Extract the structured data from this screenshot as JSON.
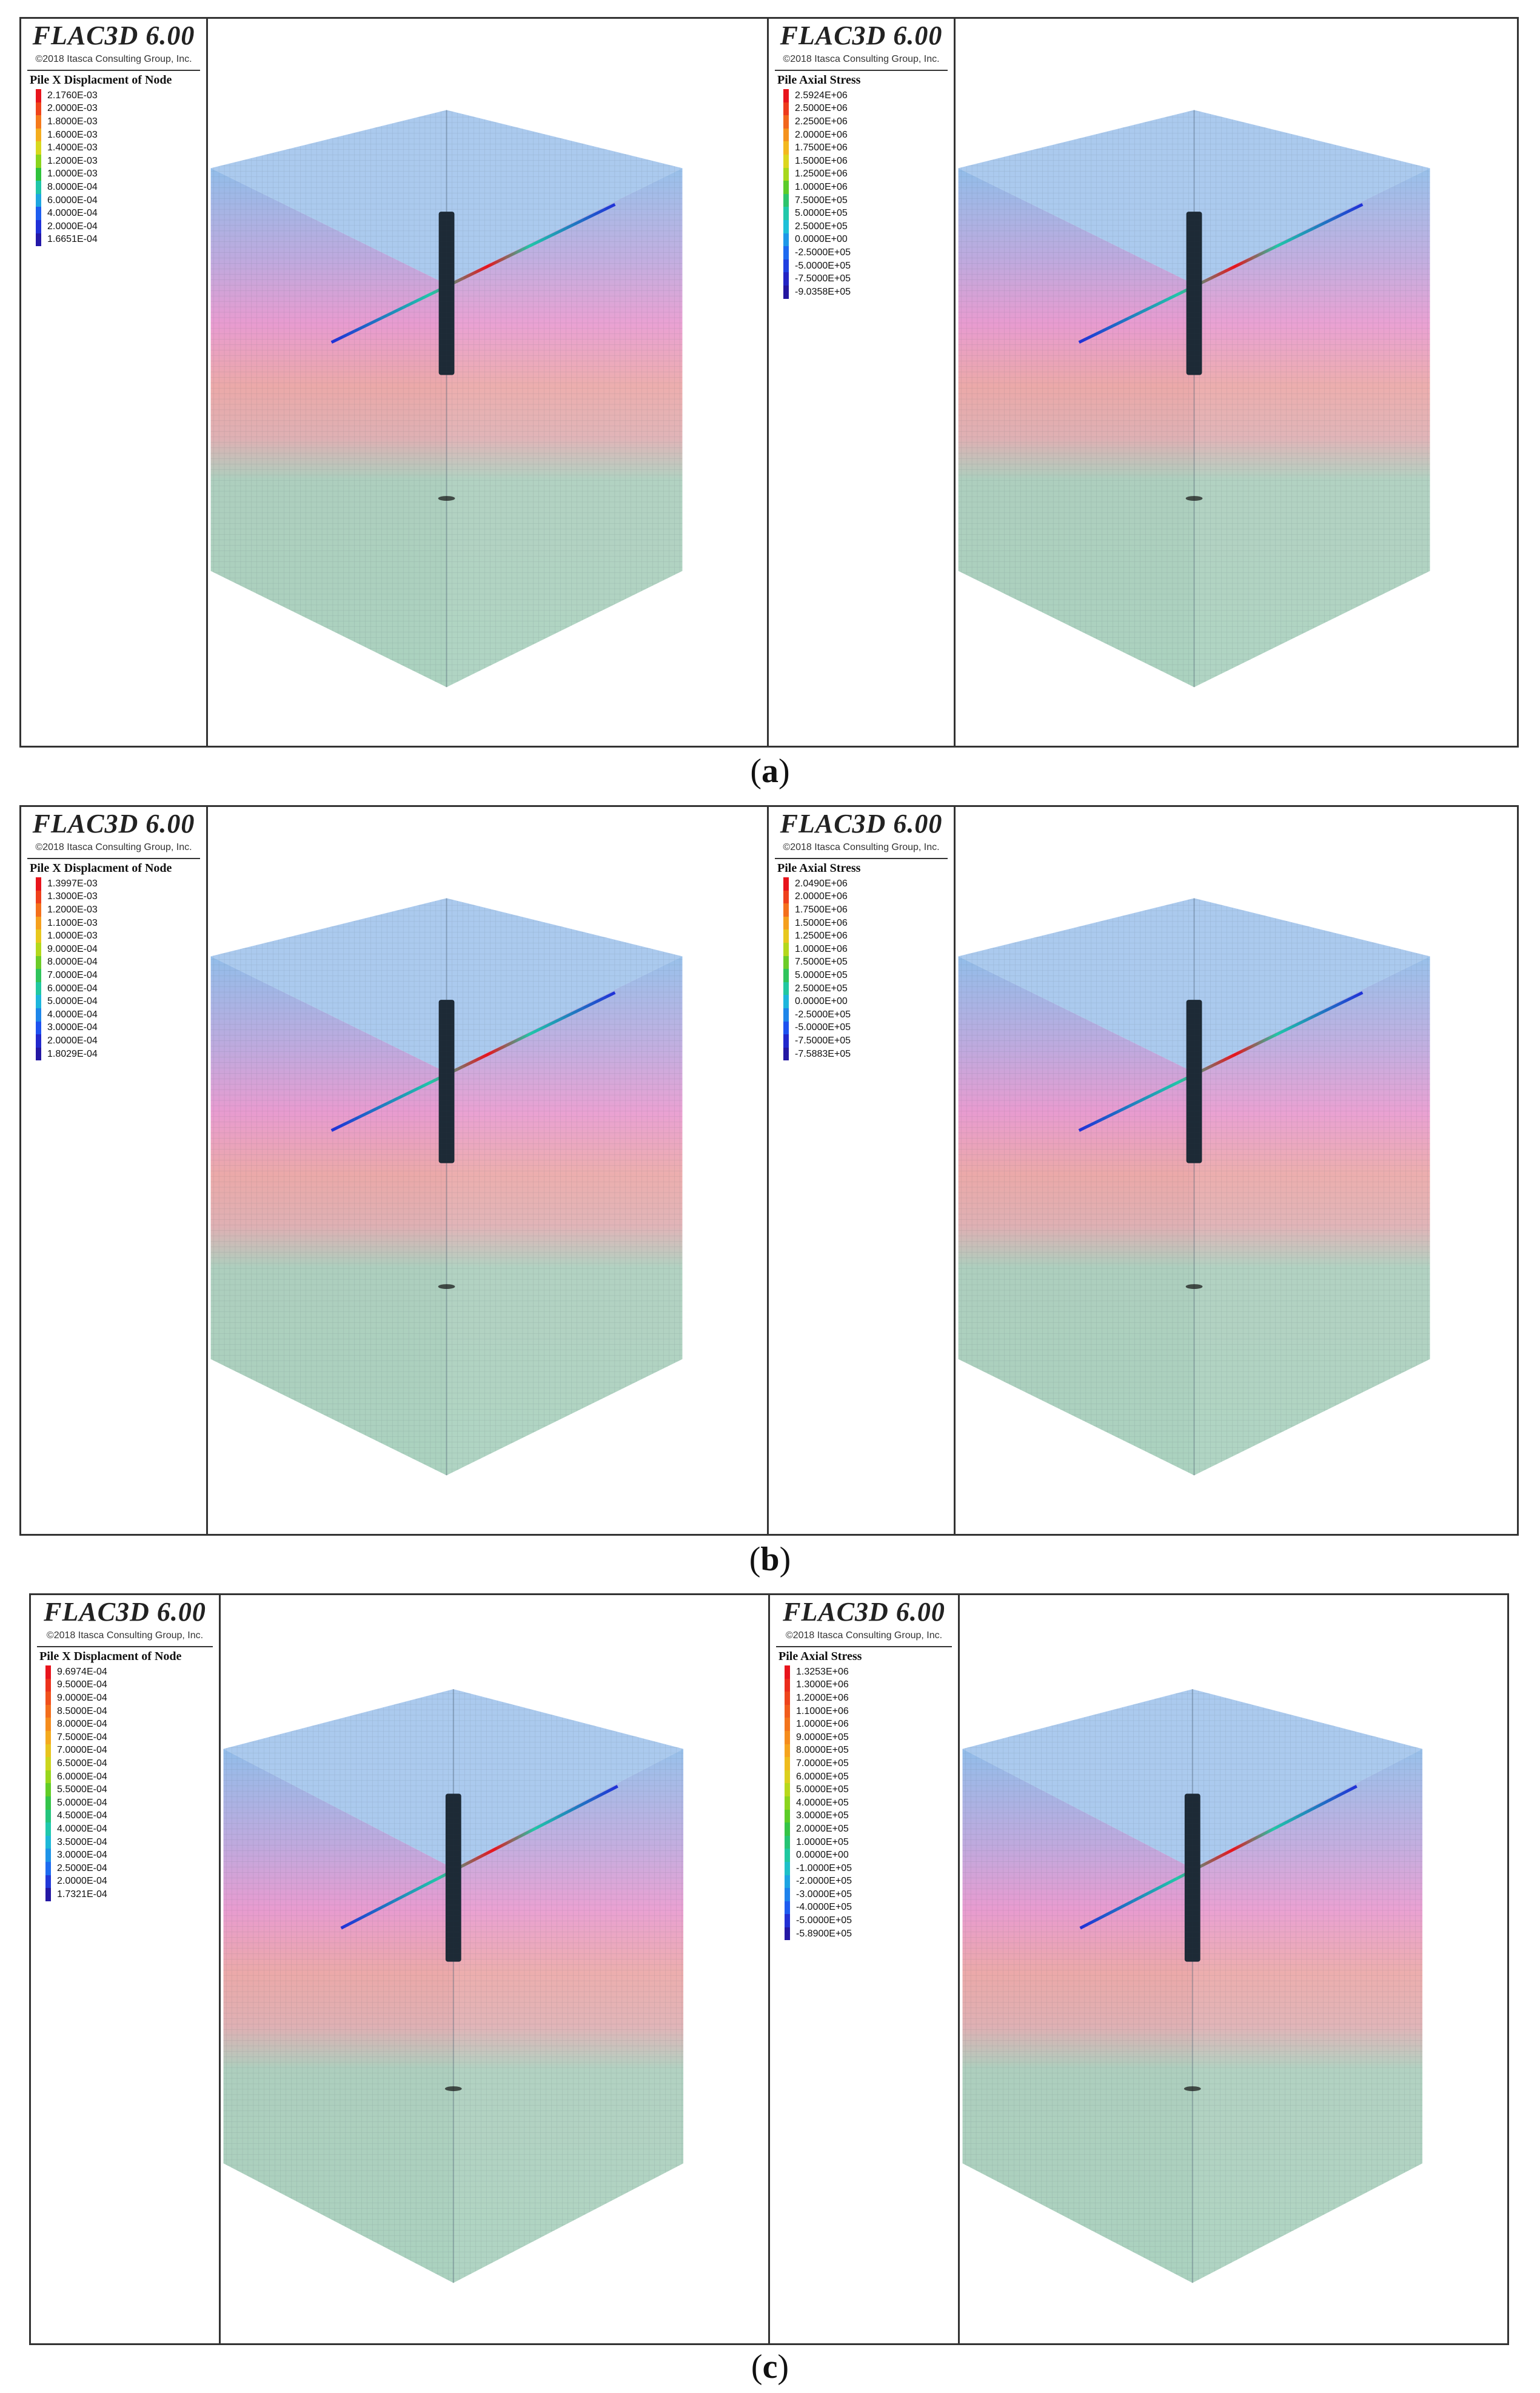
{
  "panels": {
    "a": {
      "caption_open": "(",
      "caption_letter": "a",
      "caption_close": ")",
      "left": {
        "app_title": "FLAC3D 6.00",
        "copyright": "©2018 Itasca Consulting Group, Inc.",
        "legend_title": "Pile X Displacment of Node",
        "legend_values": [
          "2.1760E-03",
          "2.0000E-03",
          "1.8000E-03",
          "1.6000E-03",
          "1.4000E-03",
          "1.2000E-03",
          "1.0000E-03",
          "8.0000E-04",
          "6.0000E-04",
          "4.0000E-04",
          "2.0000E-04",
          "1.6651E-04"
        ],
        "legend_colors": [
          "#e8141c",
          "#f0441c",
          "#f57a1c",
          "#f4ad1e",
          "#d8d81e",
          "#8ad41c",
          "#2fc23c",
          "#20c6a8",
          "#1ea6e0",
          "#1e5ef0",
          "#2030d8",
          "#2418a8"
        ]
      },
      "right": {
        "app_title": "FLAC3D 6.00",
        "copyright": "©2018 Itasca Consulting Group, Inc.",
        "legend_title": "Pile Axial Stress",
        "legend_values": [
          "2.5924E+06",
          "2.5000E+06",
          "2.2500E+06",
          "2.0000E+06",
          "1.7500E+06",
          "1.5000E+06",
          "1.2500E+06",
          "1.0000E+06",
          "7.5000E+05",
          "5.0000E+05",
          "2.5000E+05",
          "0.0000E+00",
          "-2.5000E+05",
          "-5.0000E+05",
          "-7.5000E+05",
          "-9.0358E+05"
        ],
        "legend_colors": [
          "#e8141c",
          "#ee3a1c",
          "#f2661c",
          "#f5921d",
          "#f3b81e",
          "#dcd61e",
          "#a8d81c",
          "#5ccc2a",
          "#2ec46c",
          "#22c8aa",
          "#1ec0d8",
          "#1e98e8",
          "#1e6af0",
          "#2040e0",
          "#2424c4",
          "#2416a0"
        ]
      }
    },
    "b": {
      "caption_open": "(",
      "caption_letter": "b",
      "caption_close": ")",
      "left": {
        "app_title": "FLAC3D 6.00",
        "copyright": "©2018 Itasca Consulting Group, Inc.",
        "legend_title": "Pile X Displacment of Node",
        "legend_values": [
          "1.3997E-03",
          "1.3000E-03",
          "1.2000E-03",
          "1.1000E-03",
          "1.0000E-03",
          "9.0000E-04",
          "8.0000E-04",
          "7.0000E-04",
          "6.0000E-04",
          "5.0000E-04",
          "4.0000E-04",
          "3.0000E-04",
          "2.0000E-04",
          "1.8029E-04"
        ],
        "legend_colors": [
          "#e8141c",
          "#ef401c",
          "#f4701c",
          "#f5a01e",
          "#e8c81e",
          "#b4d81c",
          "#6ccc28",
          "#30c45c",
          "#22c8a0",
          "#1eb6dc",
          "#1e86ea",
          "#1e52f0",
          "#2228cc",
          "#2418a4"
        ]
      },
      "right": {
        "app_title": "FLAC3D 6.00",
        "copyright": "©2018 Itasca Consulting Group, Inc.",
        "legend_title": "Pile Axial Stress",
        "legend_values": [
          "2.0490E+06",
          "2.0000E+06",
          "1.7500E+06",
          "1.5000E+06",
          "1.2500E+06",
          "1.0000E+06",
          "7.5000E+05",
          "5.0000E+05",
          "2.5000E+05",
          "0.0000E+00",
          "-2.5000E+05",
          "-5.0000E+05",
          "-7.5000E+05",
          "-7.5883E+05"
        ],
        "legend_colors": [
          "#e8141c",
          "#ef401c",
          "#f4701c",
          "#f5a01e",
          "#e8c81e",
          "#b4d81c",
          "#6ccc28",
          "#30c45c",
          "#22c8a0",
          "#1eb6dc",
          "#1e86ea",
          "#1e52f0",
          "#2228cc",
          "#2418a4"
        ]
      }
    },
    "c": {
      "caption_open": "(",
      "caption_letter": "c",
      "caption_close": ")",
      "left": {
        "app_title": "FLAC3D 6.00",
        "copyright": "©2018 Itasca Consulting Group, Inc.",
        "legend_title": "Pile X Displacment of Node",
        "legend_values": [
          "9.6974E-04",
          "9.5000E-04",
          "9.0000E-04",
          "8.5000E-04",
          "8.0000E-04",
          "7.5000E-04",
          "7.0000E-04",
          "6.5000E-04",
          "6.0000E-04",
          "5.5000E-04",
          "5.0000E-04",
          "4.5000E-04",
          "4.0000E-04",
          "3.5000E-04",
          "3.0000E-04",
          "2.5000E-04",
          "2.0000E-04",
          "1.7321E-04"
        ],
        "legend_colors": [
          "#e8141c",
          "#ec321c",
          "#f0501c",
          "#f36e1c",
          "#f58c1d",
          "#f4aa1e",
          "#e8c41e",
          "#ccd61e",
          "#98d61c",
          "#62cc26",
          "#34c44a",
          "#24c47e",
          "#20c8ac",
          "#1eb8d8",
          "#1e94e8",
          "#1e6cf0",
          "#2238d8",
          "#2418a4"
        ]
      },
      "right": {
        "app_title": "FLAC3D 6.00",
        "copyright": "©2018 Itasca Consulting Group, Inc.",
        "legend_title": "Pile Axial Stress",
        "legend_values": [
          "1.3253E+06",
          "1.3000E+06",
          "1.2000E+06",
          "1.1000E+06",
          "1.0000E+06",
          "9.0000E+05",
          "8.0000E+05",
          "7.0000E+05",
          "6.0000E+05",
          "5.0000E+05",
          "4.0000E+05",
          "3.0000E+05",
          "2.0000E+05",
          "1.0000E+05",
          "0.0000E+00",
          "-1.0000E+05",
          "-2.0000E+05",
          "-3.0000E+05",
          "-4.0000E+05",
          "-5.0000E+05",
          "-5.8900E+05"
        ],
        "legend_colors": [
          "#e8141c",
          "#eb2c1c",
          "#ee441c",
          "#f15c1c",
          "#f3741c",
          "#f58c1d",
          "#f5a41e",
          "#efbc1e",
          "#dcd01e",
          "#b8d81c",
          "#8cd41e",
          "#5ccc28",
          "#36c446",
          "#26c474",
          "#20c8a0",
          "#1ec0c8",
          "#1ea4e2",
          "#1e82ec",
          "#1e5cf0",
          "#2230d4",
          "#2418a4"
        ]
      }
    }
  }
}
